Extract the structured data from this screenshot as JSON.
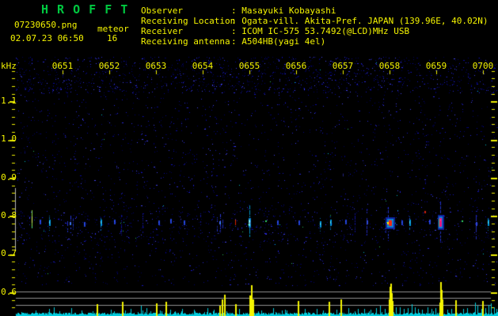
{
  "app": {
    "title": "H R O F F T",
    "filename": "07230650.png",
    "mode": "meteor",
    "datetime": "02.07.23 06:50",
    "count": "16"
  },
  "info": {
    "sep": ": ",
    "rows": [
      {
        "label": "Observer",
        "value": "Masayuki Kobayashi"
      },
      {
        "label": "Receiving Location",
        "value": "Ogata-vill. Akita-Pref. JAPAN (139.96E, 40.02N)"
      },
      {
        "label": "Receiver",
        "value": "ICOM IC-575 53.7492(@LCD)MHz USB"
      },
      {
        "label": "Receiving antenna",
        "value": "A504HB(yagi 4el)"
      }
    ]
  },
  "colors": {
    "text_yellow": "#f5f500",
    "title_green": "#00c840",
    "noise_blue": "#1414c0",
    "signal_cyan": "#00ccdd",
    "echo_red": "#f82810",
    "echo_magenta": "#f01080",
    "grid_gray": "#909090",
    "scalebar_gray": "#b8b8b8"
  },
  "chart_data": {
    "type": "heatmap",
    "title": "HROFFT 10-minute meteor radio echo spectrogram",
    "ylabel": "kHz",
    "x_tick_labels": [
      "0651",
      "0652",
      "0653",
      "0654",
      "0655",
      "0656",
      "0657",
      "0658",
      "0659",
      "0700"
    ],
    "y_tick_labels": [
      "1.1",
      "1.0",
      "0.9",
      "0.8",
      "0.7",
      "0.6"
    ],
    "x_range": [
      "0650",
      "0700"
    ],
    "y_range_khz": [
      0.54,
      1.19
    ],
    "echo_band_khz": 0.78,
    "meteor_count": 16,
    "grid": "off",
    "legend": "none",
    "level_lines_khz": [
      0.6,
      0.582,
      0.563
    ],
    "echoes": [
      {
        "t": 0.34,
        "f": 0.78,
        "tier": "green-streak"
      },
      {
        "t": 0.5,
        "f": 0.782,
        "tier": "blip"
      },
      {
        "t": 0.71,
        "f": 0.78,
        "tier": "cyan"
      },
      {
        "t": 1.15,
        "f": 0.778,
        "tier": "cluster"
      },
      {
        "t": 1.45,
        "f": 0.775,
        "tier": "blip"
      },
      {
        "t": 1.81,
        "f": 0.78,
        "tier": "cyan"
      },
      {
        "t": 2.1,
        "f": 0.782,
        "tier": "blip"
      },
      {
        "t": 2.25,
        "f": 0.776,
        "tier": "faint-streak"
      },
      {
        "t": 2.71,
        "f": 0.78,
        "tier": "faint-streak"
      },
      {
        "t": 3.05,
        "f": 0.78,
        "tier": "blip"
      },
      {
        "t": 3.3,
        "f": 0.784,
        "tier": "blip"
      },
      {
        "t": 3.6,
        "f": 0.779,
        "tier": "blip"
      },
      {
        "t": 3.95,
        "f": 0.78,
        "tier": "faint-streak"
      },
      {
        "t": 4.36,
        "f": 0.779,
        "tier": "cluster"
      },
      {
        "t": 4.69,
        "f": 0.78,
        "tier": "red-blip"
      },
      {
        "t": 5.0,
        "f": 0.78,
        "tier": "bright-cyan-trail"
      },
      {
        "t": 5.34,
        "f": 0.784,
        "tier": "green-dot"
      },
      {
        "t": 5.6,
        "f": 0.78,
        "tier": "blip"
      },
      {
        "t": 6.05,
        "f": 0.779,
        "tier": "blip"
      },
      {
        "t": 6.5,
        "f": 0.776,
        "tier": "cyan"
      },
      {
        "t": 6.73,
        "f": 0.78,
        "tier": "cyan"
      },
      {
        "t": 7.05,
        "f": 0.781,
        "tier": "blip"
      },
      {
        "t": 7.25,
        "f": 0.78,
        "tier": "faint-streak"
      },
      {
        "t": 7.5,
        "f": 0.779,
        "tier": "streak"
      },
      {
        "t": 8.0,
        "f": 0.78,
        "tier": "major-red"
      },
      {
        "t": 8.25,
        "f": 0.78,
        "tier": "blip"
      },
      {
        "t": 8.42,
        "f": 0.779,
        "tier": "cyan"
      },
      {
        "t": 8.74,
        "f": 0.808,
        "tier": "red-dot"
      },
      {
        "t": 8.85,
        "f": 0.781,
        "tier": "blip"
      },
      {
        "t": 9.08,
        "f": 0.781,
        "tier": "major-magenta"
      },
      {
        "t": 9.54,
        "f": 0.784,
        "tier": "green-dot"
      },
      {
        "t": 9.85,
        "f": 0.776,
        "tier": "streak"
      },
      {
        "t": 10.1,
        "f": 0.78,
        "tier": "cyan"
      }
    ],
    "amplitude": {
      "baseline": "cyan noise",
      "yellow_spikes": [
        [
          122,
          14
        ],
        [
          154,
          17
        ],
        [
          197,
          15
        ],
        [
          209,
          17
        ],
        [
          277,
          12
        ],
        [
          280,
          20
        ],
        [
          283,
          26
        ],
        [
          297,
          14
        ],
        [
          315,
          25
        ],
        [
          317,
          38
        ],
        [
          319,
          20
        ],
        [
          376,
          18
        ],
        [
          415,
          17
        ],
        [
          430,
          20
        ],
        [
          491,
          20
        ],
        [
          492,
          36
        ],
        [
          493,
          40
        ],
        [
          494,
          28
        ],
        [
          495,
          18
        ],
        [
          555,
          16
        ],
        [
          556,
          42
        ],
        [
          557,
          32
        ],
        [
          558,
          20
        ],
        [
          575,
          19
        ],
        [
          609,
          18
        ]
      ],
      "cyan_spikes": [
        [
          45,
          6
        ],
        [
          62,
          8
        ],
        [
          68,
          10
        ],
        [
          75,
          5
        ],
        [
          90,
          9
        ],
        [
          103,
          6
        ],
        [
          140,
          7
        ],
        [
          165,
          8
        ],
        [
          178,
          12
        ],
        [
          185,
          9
        ],
        [
          215,
          7
        ],
        [
          230,
          8
        ],
        [
          245,
          7
        ],
        [
          262,
          9
        ],
        [
          270,
          7
        ],
        [
          302,
          8
        ],
        [
          330,
          6
        ],
        [
          345,
          9
        ],
        [
          360,
          7
        ],
        [
          385,
          8
        ],
        [
          400,
          8
        ],
        [
          425,
          7
        ],
        [
          440,
          9
        ],
        [
          452,
          8
        ],
        [
          460,
          8
        ],
        [
          468,
          7
        ],
        [
          475,
          9
        ],
        [
          480,
          12
        ],
        [
          486,
          8
        ],
        [
          500,
          10
        ],
        [
          505,
          10
        ],
        [
          510,
          8
        ],
        [
          515,
          9
        ],
        [
          520,
          14
        ],
        [
          524,
          10
        ],
        [
          528,
          8
        ],
        [
          533,
          7
        ],
        [
          540,
          10
        ],
        [
          545,
          8
        ],
        [
          550,
          9
        ],
        [
          565,
          7
        ],
        [
          570,
          8
        ],
        [
          585,
          8
        ],
        [
          590,
          9
        ],
        [
          600,
          16
        ],
        [
          603,
          12
        ],
        [
          608,
          8
        ],
        [
          613,
          9
        ],
        [
          617,
          13
        ],
        [
          620,
          15
        ],
        [
          624,
          10
        ],
        [
          627,
          8
        ]
      ]
    }
  }
}
